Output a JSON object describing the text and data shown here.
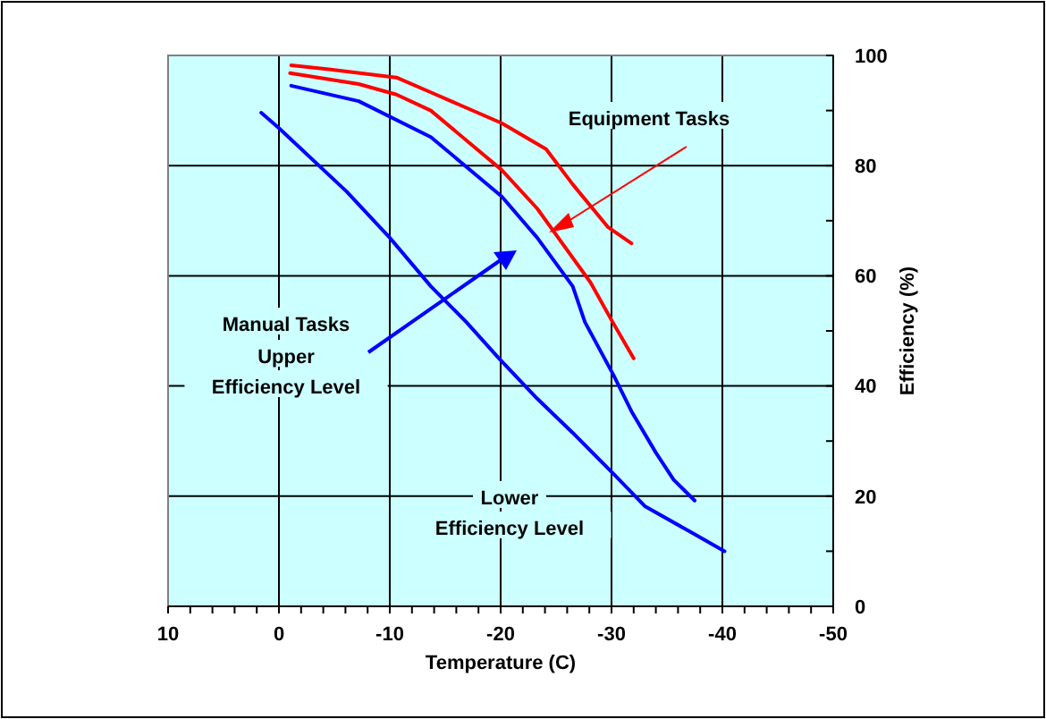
{
  "chart_data": {
    "type": "line",
    "xlabel": "Temperature (C)",
    "ylabel": "Efficiency (%)",
    "xlim": [
      10,
      -50
    ],
    "xticks": [
      10,
      0,
      -10,
      -20,
      -30,
      -40,
      -50
    ],
    "ylim": [
      0,
      100
    ],
    "yticks": [
      0,
      20,
      40,
      60,
      80,
      100
    ],
    "grid": true,
    "series": [
      {
        "color": "#ff0000",
        "x": [
          -1.1,
          -4.5,
          -10.6,
          -13.7,
          -20.1,
          -24.1,
          -26.5,
          -29.7,
          -31.8
        ],
        "values": [
          98.2,
          97.5,
          96,
          93.3,
          87.7,
          83,
          76.6,
          68.8,
          65.9
        ]
      },
      {
        "color": "#ff0000",
        "x": [
          -1,
          -7.2,
          -10.6,
          -13.7,
          -20.1,
          -23.3,
          -28.1,
          -30.1,
          -32
        ],
        "values": [
          96.8,
          94.8,
          92.9,
          90,
          79.2,
          72.2,
          58.8,
          51.6,
          45
        ]
      },
      {
        "color": "#0000ff",
        "x": [
          -1.1,
          -7.2,
          -13.7,
          -20.1,
          -23.3,
          -26.5,
          -27.6,
          -30.2,
          -31.8,
          -34,
          -35.6,
          -37.5
        ],
        "values": [
          94.5,
          91.7,
          85.2,
          74.4,
          66.9,
          58.1,
          51.6,
          41.9,
          35.4,
          27.9,
          23,
          19.2
        ]
      },
      {
        "color": "#0000ff",
        "x": [
          1.6,
          0,
          -6.1,
          -10,
          -13.7,
          -16.9,
          -19.8,
          -23.3,
          -26.5,
          -30.2,
          -33,
          -37.3,
          -40.2
        ],
        "values": [
          89.6,
          86.8,
          75.3,
          66.9,
          58.1,
          51.6,
          45.1,
          37.7,
          31.5,
          24,
          18.2,
          13.3,
          10
        ]
      }
    ],
    "annotations": [
      "Equipment Tasks",
      "Manual Tasks",
      "Upper Efficiency Level",
      "Lower Efficiency Level"
    ]
  }
}
